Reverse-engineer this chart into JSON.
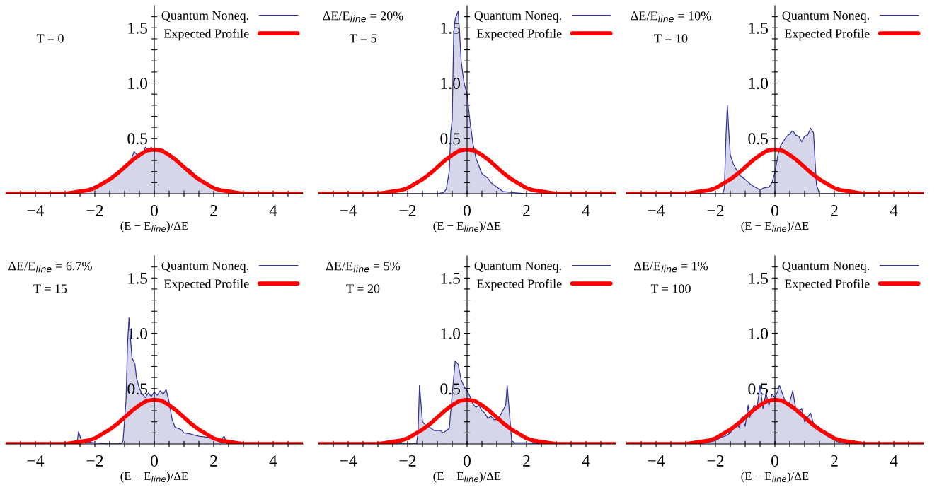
{
  "chart_data": [
    {
      "type": "line",
      "xlabel": "(E − E$_{line}$)/ΔE",
      "annotations": [
        "T = 0"
      ],
      "legend": "top right",
      "xlim": [
        -5,
        5
      ],
      "ylim": [
        0,
        1.7
      ],
      "xticks": [
        {
          "value": -4.5,
          "label": null
        },
        {
          "value": -4,
          "label": "−4"
        },
        {
          "value": -3.5,
          "label": null
        },
        {
          "value": -3,
          "label": null
        },
        {
          "value": -2.5,
          "label": null
        },
        {
          "value": -2,
          "label": "−2"
        },
        {
          "value": -1.5,
          "label": null
        },
        {
          "value": -1,
          "label": null
        },
        {
          "value": -0.5,
          "label": null
        },
        {
          "value": 0,
          "label": "0"
        },
        {
          "value": 0.5,
          "label": null
        },
        {
          "value": 1,
          "label": null
        },
        {
          "value": 1.5,
          "label": null
        },
        {
          "value": 2,
          "label": "2"
        },
        {
          "value": 2.5,
          "label": null
        },
        {
          "value": 3,
          "label": null
        },
        {
          "value": 3.5,
          "label": null
        },
        {
          "value": 4,
          "label": "4"
        },
        {
          "value": 4.5,
          "label": null
        }
      ],
      "yticks": [
        {
          "value": 0.1,
          "label": null
        },
        {
          "value": 0.2,
          "label": null
        },
        {
          "value": 0.3,
          "label": null
        },
        {
          "value": 0.4,
          "label": null
        },
        {
          "value": 0.5,
          "label": "0.5"
        },
        {
          "value": 0.6,
          "label": null
        },
        {
          "value": 0.7,
          "label": null
        },
        {
          "value": 0.8,
          "label": null
        },
        {
          "value": 0.9,
          "label": null
        },
        {
          "value": 1.0,
          "label": "1.0"
        },
        {
          "value": 1.1,
          "label": null
        },
        {
          "value": 1.2,
          "label": null
        },
        {
          "value": 1.3,
          "label": null
        },
        {
          "value": 1.4,
          "label": null
        },
        {
          "value": 1.5,
          "label": "1.5"
        },
        {
          "value": 1.6,
          "label": null
        }
      ],
      "series": [
        {
          "name": "Quantum Noneq.",
          "type": "area",
          "color": "#33339a",
          "x": [
            -5,
            -3,
            -2.5,
            -2,
            -1.5,
            -1.2,
            -1,
            -0.8,
            -0.68,
            -0.5,
            -0.4,
            -0.3,
            -0.2,
            -0.1,
            0,
            0.1,
            0.2,
            0.3,
            0.5,
            0.6,
            0.8,
            1,
            1.2,
            1.5,
            2,
            2.5,
            3,
            5
          ],
          "values": [
            0,
            0,
            0.01,
            0.07,
            0.13,
            0.2,
            0.24,
            0.29,
            0.38,
            0.33,
            0.36,
            0.42,
            0.39,
            0.42,
            0.38,
            0.41,
            0.39,
            0.4,
            0.35,
            0.31,
            0.3,
            0.24,
            0.22,
            0.13,
            0.05,
            0.01,
            0,
            0
          ]
        },
        {
          "name": "Expected Profile",
          "color": "#ff0000",
          "x": [
            -5,
            -4,
            -3.5,
            -3,
            -2.75,
            -2.5,
            -2.25,
            -2,
            -1.75,
            -1.5,
            -1.25,
            -1,
            -0.75,
            -0.5,
            -0.25,
            0,
            0.25,
            0.5,
            0.75,
            1,
            1.25,
            1.5,
            1.75,
            2,
            2.25,
            2.5,
            2.75,
            3,
            3.5,
            4,
            5
          ],
          "values": [
            0,
            0,
            0,
            0,
            0.01,
            0.02,
            0.03,
            0.05,
            0.09,
            0.13,
            0.18,
            0.24,
            0.3,
            0.35,
            0.39,
            0.4,
            0.39,
            0.35,
            0.3,
            0.24,
            0.18,
            0.13,
            0.09,
            0.05,
            0.03,
            0.02,
            0.01,
            0,
            0,
            0,
            0
          ]
        }
      ]
    },
    {
      "type": "line",
      "xlabel": "(E − E$_{line}$)/ΔE",
      "annotations": [
        "ΔE/E$_{line}$ = 20%",
        "T = 5"
      ],
      "legend": "top right",
      "xlim": [
        -5,
        5
      ],
      "ylim": [
        0,
        1.7
      ],
      "xticks": [
        {
          "value": -4.5,
          "label": null
        },
        {
          "value": -4,
          "label": "−4"
        },
        {
          "value": -3.5,
          "label": null
        },
        {
          "value": -3,
          "label": null
        },
        {
          "value": -2.5,
          "label": null
        },
        {
          "value": -2,
          "label": "−2"
        },
        {
          "value": -1.5,
          "label": null
        },
        {
          "value": -1,
          "label": null
        },
        {
          "value": -0.5,
          "label": null
        },
        {
          "value": 0,
          "label": "0"
        },
        {
          "value": 0.5,
          "label": null
        },
        {
          "value": 1,
          "label": null
        },
        {
          "value": 1.5,
          "label": null
        },
        {
          "value": 2,
          "label": "2"
        },
        {
          "value": 2.5,
          "label": null
        },
        {
          "value": 3,
          "label": null
        },
        {
          "value": 3.5,
          "label": null
        },
        {
          "value": 4,
          "label": "4"
        },
        {
          "value": 4.5,
          "label": null
        }
      ],
      "yticks": [
        {
          "value": 0.1,
          "label": null
        },
        {
          "value": 0.2,
          "label": null
        },
        {
          "value": 0.3,
          "label": null
        },
        {
          "value": 0.4,
          "label": null
        },
        {
          "value": 0.5,
          "label": "0.5"
        },
        {
          "value": 0.6,
          "label": null
        },
        {
          "value": 0.7,
          "label": null
        },
        {
          "value": 0.8,
          "label": null
        },
        {
          "value": 0.9,
          "label": null
        },
        {
          "value": 1.0,
          "label": "1.0"
        },
        {
          "value": 1.1,
          "label": null
        },
        {
          "value": 1.2,
          "label": null
        },
        {
          "value": 1.3,
          "label": null
        },
        {
          "value": 1.4,
          "label": null
        },
        {
          "value": 1.5,
          "label": "1.5"
        },
        {
          "value": 1.6,
          "label": null
        }
      ],
      "series": [
        {
          "name": "Quantum Noneq.",
          "type": "area",
          "color": "#33339a",
          "x": [
            -5,
            -1,
            -0.8,
            -0.7,
            -0.6,
            -0.55,
            -0.5,
            -0.45,
            -0.4,
            -0.3,
            -0.25,
            -0.2,
            -0.1,
            0,
            0.1,
            0.15,
            0.2,
            0.3,
            0.5,
            0.7,
            0.8,
            0.9,
            1,
            1.2,
            1.5,
            2,
            5
          ],
          "values": [
            0,
            0,
            0.01,
            0.04,
            0.2,
            0.55,
            0.67,
            1.45,
            1.58,
            1.65,
            1.45,
            1.2,
            1.0,
            0.9,
            0.65,
            0.55,
            0.45,
            0.32,
            0.18,
            0.14,
            0.1,
            0.08,
            0.06,
            0.02,
            0.01,
            0,
            0
          ]
        },
        {
          "name": "Expected Profile",
          "color": "#ff0000",
          "x": [
            -5,
            -4,
            -3.5,
            -3,
            -2.75,
            -2.5,
            -2.25,
            -2,
            -1.75,
            -1.5,
            -1.25,
            -1,
            -0.75,
            -0.5,
            -0.25,
            0,
            0.25,
            0.5,
            0.75,
            1,
            1.25,
            1.5,
            1.75,
            2,
            2.25,
            2.5,
            2.75,
            3,
            3.5,
            4,
            5
          ],
          "values": [
            0,
            0,
            0,
            0,
            0.01,
            0.02,
            0.03,
            0.05,
            0.09,
            0.13,
            0.18,
            0.24,
            0.3,
            0.35,
            0.39,
            0.4,
            0.39,
            0.35,
            0.3,
            0.24,
            0.18,
            0.13,
            0.09,
            0.05,
            0.03,
            0.02,
            0.01,
            0,
            0,
            0,
            0
          ]
        }
      ]
    },
    {
      "type": "line",
      "xlabel": "(E − E$_{line}$)/ΔE",
      "annotations": [
        "ΔE/E$_{line}$ = 10%",
        "T = 10"
      ],
      "legend": "top right",
      "xlim": [
        -5,
        5
      ],
      "ylim": [
        0,
        1.7
      ],
      "xticks": [
        {
          "value": -4.5,
          "label": null
        },
        {
          "value": -4,
          "label": "−4"
        },
        {
          "value": -3.5,
          "label": null
        },
        {
          "value": -3,
          "label": null
        },
        {
          "value": -2.5,
          "label": null
        },
        {
          "value": -2,
          "label": "−2"
        },
        {
          "value": -1.5,
          "label": null
        },
        {
          "value": -1,
          "label": null
        },
        {
          "value": -0.5,
          "label": null
        },
        {
          "value": 0,
          "label": "0"
        },
        {
          "value": 0.5,
          "label": null
        },
        {
          "value": 1,
          "label": null
        },
        {
          "value": 1.5,
          "label": null
        },
        {
          "value": 2,
          "label": "2"
        },
        {
          "value": 2.5,
          "label": null
        },
        {
          "value": 3,
          "label": null
        },
        {
          "value": 3.5,
          "label": null
        },
        {
          "value": 4,
          "label": "4"
        },
        {
          "value": 4.5,
          "label": null
        }
      ],
      "yticks": [
        {
          "value": 0.1,
          "label": null
        },
        {
          "value": 0.2,
          "label": null
        },
        {
          "value": 0.3,
          "label": null
        },
        {
          "value": 0.4,
          "label": null
        },
        {
          "value": 0.5,
          "label": "0.5"
        },
        {
          "value": 0.6,
          "label": null
        },
        {
          "value": 0.7,
          "label": null
        },
        {
          "value": 0.8,
          "label": null
        },
        {
          "value": 0.9,
          "label": null
        },
        {
          "value": 1.0,
          "label": "1.0"
        },
        {
          "value": 1.1,
          "label": null
        },
        {
          "value": 1.2,
          "label": null
        },
        {
          "value": 1.3,
          "label": null
        },
        {
          "value": 1.4,
          "label": null
        },
        {
          "value": 1.5,
          "label": "1.5"
        },
        {
          "value": 1.6,
          "label": null
        }
      ],
      "series": [
        {
          "name": "Quantum Noneq.",
          "type": "area",
          "color": "#33339a",
          "x": [
            -5,
            -1.75,
            -1.7,
            -1.65,
            -1.6,
            -1.55,
            -1.5,
            -1.4,
            -1.2,
            -1,
            -0.8,
            -0.6,
            -0.5,
            -0.4,
            -0.2,
            -0.1,
            0,
            0.1,
            0.2,
            0.3,
            0.4,
            0.5,
            0.6,
            0.7,
            0.8,
            0.9,
            1,
            1.1,
            1.2,
            1.3,
            1.35,
            1.4,
            1.5,
            5
          ],
          "values": [
            0,
            0,
            0.05,
            0.5,
            0.8,
            0.56,
            0.35,
            0.27,
            0.17,
            0.13,
            0.08,
            0.05,
            0.03,
            0.05,
            0.06,
            0.1,
            0.19,
            0.35,
            0.44,
            0.48,
            0.52,
            0.54,
            0.57,
            0.53,
            0.52,
            0.47,
            0.52,
            0.53,
            0.59,
            0.55,
            0.3,
            0.08,
            0,
            0
          ]
        },
        {
          "name": "Expected Profile",
          "color": "#ff0000",
          "x": [
            -5,
            -4,
            -3.5,
            -3,
            -2.75,
            -2.5,
            -2.25,
            -2,
            -1.75,
            -1.5,
            -1.25,
            -1,
            -0.75,
            -0.5,
            -0.25,
            0,
            0.25,
            0.5,
            0.75,
            1,
            1.25,
            1.5,
            1.75,
            2,
            2.25,
            2.5,
            2.75,
            3,
            3.5,
            4,
            5
          ],
          "values": [
            0,
            0,
            0,
            0,
            0.01,
            0.02,
            0.03,
            0.05,
            0.09,
            0.13,
            0.18,
            0.24,
            0.3,
            0.35,
            0.39,
            0.4,
            0.39,
            0.35,
            0.3,
            0.24,
            0.18,
            0.13,
            0.09,
            0.05,
            0.03,
            0.02,
            0.01,
            0,
            0,
            0,
            0
          ]
        }
      ]
    },
    {
      "type": "line",
      "xlabel": "(E − E$_{line}$)/ΔE",
      "annotations": [
        "ΔE/E$_{line}$ = 6.7%",
        "T = 15"
      ],
      "legend": "top right",
      "xlim": [
        -5,
        5
      ],
      "ylim": [
        0,
        1.7
      ],
      "xticks": [
        {
          "value": -4.5,
          "label": null
        },
        {
          "value": -4,
          "label": "−4"
        },
        {
          "value": -3.5,
          "label": null
        },
        {
          "value": -3,
          "label": null
        },
        {
          "value": -2.5,
          "label": null
        },
        {
          "value": -2,
          "label": "−2"
        },
        {
          "value": -1.5,
          "label": null
        },
        {
          "value": -1,
          "label": null
        },
        {
          "value": -0.5,
          "label": null
        },
        {
          "value": 0,
          "label": "0"
        },
        {
          "value": 0.5,
          "label": null
        },
        {
          "value": 1,
          "label": null
        },
        {
          "value": 1.5,
          "label": null
        },
        {
          "value": 2,
          "label": "2"
        },
        {
          "value": 2.5,
          "label": null
        },
        {
          "value": 3,
          "label": null
        },
        {
          "value": 3.5,
          "label": null
        },
        {
          "value": 4,
          "label": "4"
        },
        {
          "value": 4.5,
          "label": null
        }
      ],
      "yticks": [
        {
          "value": 0.1,
          "label": null
        },
        {
          "value": 0.2,
          "label": null
        },
        {
          "value": 0.3,
          "label": null
        },
        {
          "value": 0.4,
          "label": null
        },
        {
          "value": 0.5,
          "label": "0.5"
        },
        {
          "value": 0.6,
          "label": null
        },
        {
          "value": 0.7,
          "label": null
        },
        {
          "value": 0.8,
          "label": null
        },
        {
          "value": 0.9,
          "label": null
        },
        {
          "value": 1.0,
          "label": "1.0"
        },
        {
          "value": 1.1,
          "label": null
        },
        {
          "value": 1.2,
          "label": null
        },
        {
          "value": 1.3,
          "label": null
        },
        {
          "value": 1.4,
          "label": null
        },
        {
          "value": 1.5,
          "label": "1.5"
        },
        {
          "value": 1.6,
          "label": null
        }
      ],
      "series": [
        {
          "name": "Quantum Noneq.",
          "type": "area",
          "color": "#33339a",
          "x": [
            -5,
            -2.6,
            -2.55,
            -2.45,
            -2.3,
            -2,
            -1.5,
            -1.1,
            -1.05,
            -0.95,
            -0.9,
            -0.85,
            -0.8,
            -0.75,
            -0.65,
            -0.6,
            -0.5,
            -0.4,
            -0.3,
            -0.2,
            -0.1,
            0,
            0.1,
            0.2,
            0.3,
            0.4,
            0.5,
            0.6,
            0.7,
            0.9,
            1,
            1.2,
            1.5,
            1.8,
            2,
            2.2,
            2.35,
            2.45,
            5
          ],
          "values": [
            0,
            0,
            0.11,
            0.03,
            0.02,
            0.01,
            0,
            0,
            0.03,
            0.4,
            0.9,
            1.14,
            0.95,
            0.78,
            0.72,
            0.6,
            0.5,
            0.45,
            0.42,
            0.46,
            0.43,
            0.47,
            0.44,
            0.48,
            0.45,
            0.49,
            0.38,
            0.22,
            0.15,
            0.13,
            0.1,
            0.09,
            0.07,
            0.06,
            0.04,
            0.02,
            0.07,
            0,
            0
          ]
        },
        {
          "name": "Expected Profile",
          "color": "#ff0000",
          "x": [
            -5,
            -4,
            -3.5,
            -3,
            -2.75,
            -2.5,
            -2.25,
            -2,
            -1.75,
            -1.5,
            -1.25,
            -1,
            -0.75,
            -0.5,
            -0.25,
            0,
            0.25,
            0.5,
            0.75,
            1,
            1.25,
            1.5,
            1.75,
            2,
            2.25,
            2.5,
            2.75,
            3,
            3.5,
            4,
            5
          ],
          "values": [
            0,
            0,
            0,
            0,
            0.01,
            0.02,
            0.03,
            0.05,
            0.09,
            0.13,
            0.18,
            0.24,
            0.3,
            0.35,
            0.39,
            0.4,
            0.39,
            0.35,
            0.3,
            0.24,
            0.18,
            0.13,
            0.09,
            0.05,
            0.03,
            0.02,
            0.01,
            0,
            0,
            0,
            0
          ]
        }
      ]
    },
    {
      "type": "line",
      "xlabel": "(E − E$_{line}$)/ΔE",
      "annotations": [
        "ΔE/E$_{line}$ = 5%",
        "T = 20"
      ],
      "legend": "top right",
      "xlim": [
        -5,
        5
      ],
      "ylim": [
        0,
        1.7
      ],
      "xticks": [
        {
          "value": -4.5,
          "label": null
        },
        {
          "value": -4,
          "label": "−4"
        },
        {
          "value": -3.5,
          "label": null
        },
        {
          "value": -3,
          "label": null
        },
        {
          "value": -2.5,
          "label": null
        },
        {
          "value": -2,
          "label": "−2"
        },
        {
          "value": -1.5,
          "label": null
        },
        {
          "value": -1,
          "label": null
        },
        {
          "value": -0.5,
          "label": null
        },
        {
          "value": 0,
          "label": "0"
        },
        {
          "value": 0.5,
          "label": null
        },
        {
          "value": 1,
          "label": null
        },
        {
          "value": 1.5,
          "label": null
        },
        {
          "value": 2,
          "label": "2"
        },
        {
          "value": 2.5,
          "label": null
        },
        {
          "value": 3,
          "label": null
        },
        {
          "value": 3.5,
          "label": null
        },
        {
          "value": 4,
          "label": "4"
        },
        {
          "value": 4.5,
          "label": null
        }
      ],
      "yticks": [
        {
          "value": 0.1,
          "label": null
        },
        {
          "value": 0.2,
          "label": null
        },
        {
          "value": 0.3,
          "label": null
        },
        {
          "value": 0.4,
          "label": null
        },
        {
          "value": 0.5,
          "label": "0.5"
        },
        {
          "value": 0.6,
          "label": null
        },
        {
          "value": 0.7,
          "label": null
        },
        {
          "value": 0.8,
          "label": null
        },
        {
          "value": 0.9,
          "label": null
        },
        {
          "value": 1.0,
          "label": "1.0"
        },
        {
          "value": 1.1,
          "label": null
        },
        {
          "value": 1.2,
          "label": null
        },
        {
          "value": 1.3,
          "label": null
        },
        {
          "value": 1.4,
          "label": null
        },
        {
          "value": 1.5,
          "label": "1.5"
        },
        {
          "value": 1.6,
          "label": null
        }
      ],
      "series": [
        {
          "name": "Quantum Noneq.",
          "type": "area",
          "color": "#33339a",
          "x": [
            -5,
            -1.7,
            -1.65,
            -1.6,
            -1.5,
            -1.4,
            -1.3,
            -1.1,
            -0.9,
            -0.8,
            -0.7,
            -0.6,
            -0.5,
            -0.4,
            -0.3,
            -0.2,
            -0.1,
            0,
            0.1,
            0.2,
            0.3,
            0.4,
            0.5,
            0.6,
            0.7,
            0.8,
            0.9,
            1,
            1.1,
            1.2,
            1.3,
            1.35,
            1.45,
            1.5,
            1.6,
            2,
            2.5,
            5
          ],
          "values": [
            0,
            0,
            0.1,
            0.53,
            0.2,
            0.17,
            0.16,
            0.12,
            0.12,
            0.1,
            0.12,
            0.14,
            0.45,
            0.75,
            0.72,
            0.58,
            0.52,
            0.48,
            0.43,
            0.36,
            0.33,
            0.35,
            0.3,
            0.28,
            0.23,
            0.25,
            0.22,
            0.22,
            0.25,
            0.3,
            0.35,
            0.53,
            0.2,
            0.03,
            0.01,
            0.01,
            0,
            0
          ]
        },
        {
          "name": "Expected Profile",
          "color": "#ff0000",
          "x": [
            -5,
            -4,
            -3.5,
            -3,
            -2.75,
            -2.5,
            -2.25,
            -2,
            -1.75,
            -1.5,
            -1.25,
            -1,
            -0.75,
            -0.5,
            -0.25,
            0,
            0.25,
            0.5,
            0.75,
            1,
            1.25,
            1.5,
            1.75,
            2,
            2.25,
            2.5,
            2.75,
            3,
            3.5,
            4,
            5
          ],
          "values": [
            0,
            0,
            0,
            0,
            0.01,
            0.02,
            0.03,
            0.05,
            0.09,
            0.13,
            0.18,
            0.24,
            0.3,
            0.35,
            0.39,
            0.4,
            0.39,
            0.35,
            0.3,
            0.24,
            0.18,
            0.13,
            0.09,
            0.05,
            0.03,
            0.02,
            0.01,
            0,
            0,
            0,
            0
          ]
        }
      ]
    },
    {
      "type": "line",
      "xlabel": "(E − E$_{line}$)/ΔE",
      "annotations": [
        "ΔE/E$_{line}$ = 1%",
        "T = 100"
      ],
      "legend": "top right",
      "xlim": [
        -5,
        5
      ],
      "ylim": [
        0,
        1.7
      ],
      "xticks": [
        {
          "value": -4.5,
          "label": null
        },
        {
          "value": -4,
          "label": "−4"
        },
        {
          "value": -3.5,
          "label": null
        },
        {
          "value": -3,
          "label": null
        },
        {
          "value": -2.5,
          "label": null
        },
        {
          "value": -2,
          "label": "−2"
        },
        {
          "value": -1.5,
          "label": null
        },
        {
          "value": -1,
          "label": null
        },
        {
          "value": -0.5,
          "label": null
        },
        {
          "value": 0,
          "label": "0"
        },
        {
          "value": 0.5,
          "label": null
        },
        {
          "value": 1,
          "label": null
        },
        {
          "value": 1.5,
          "label": null
        },
        {
          "value": 2,
          "label": "2"
        },
        {
          "value": 2.5,
          "label": null
        },
        {
          "value": 3,
          "label": null
        },
        {
          "value": 3.5,
          "label": null
        },
        {
          "value": 4,
          "label": "4"
        },
        {
          "value": 4.5,
          "label": null
        }
      ],
      "yticks": [
        {
          "value": 0.1,
          "label": null
        },
        {
          "value": 0.2,
          "label": null
        },
        {
          "value": 0.3,
          "label": null
        },
        {
          "value": 0.4,
          "label": null
        },
        {
          "value": 0.5,
          "label": "0.5"
        },
        {
          "value": 0.6,
          "label": null
        },
        {
          "value": 0.7,
          "label": null
        },
        {
          "value": 0.8,
          "label": null
        },
        {
          "value": 0.9,
          "label": null
        },
        {
          "value": 1.0,
          "label": "1.0"
        },
        {
          "value": 1.1,
          "label": null
        },
        {
          "value": 1.2,
          "label": null
        },
        {
          "value": 1.3,
          "label": null
        },
        {
          "value": 1.4,
          "label": null
        },
        {
          "value": 1.5,
          "label": "1.5"
        },
        {
          "value": 1.6,
          "label": null
        }
      ],
      "series": [
        {
          "name": "Quantum Noneq.",
          "type": "area",
          "color": "#33339a",
          "x": [
            -5,
            -2.5,
            -2,
            -1.8,
            -1.6,
            -1.5,
            -1.3,
            -1.2,
            -1.1,
            -1,
            -0.9,
            -0.85,
            -0.7,
            -0.6,
            -0.5,
            -0.4,
            -0.3,
            -0.2,
            -0.1,
            0,
            0.1,
            0.15,
            0.3,
            0.4,
            0.5,
            0.6,
            0.7,
            0.8,
            0.9,
            1,
            1.2,
            1.3,
            1.5,
            1.7,
            1.9,
            2.1,
            2.5,
            5
          ],
          "values": [
            0,
            0,
            0.03,
            0.06,
            0.08,
            0.1,
            0.18,
            0.15,
            0.25,
            0.16,
            0.35,
            0.24,
            0.35,
            0.33,
            0.53,
            0.32,
            0.46,
            0.35,
            0.45,
            0.42,
            0.48,
            0.53,
            0.42,
            0.35,
            0.38,
            0.48,
            0.32,
            0.3,
            0.32,
            0.2,
            0.28,
            0.18,
            0.15,
            0.08,
            0.05,
            0.02,
            0,
            0
          ]
        },
        {
          "name": "Expected Profile",
          "color": "#ff0000",
          "x": [
            -5,
            -4,
            -3.5,
            -3,
            -2.75,
            -2.5,
            -2.25,
            -2,
            -1.75,
            -1.5,
            -1.25,
            -1,
            -0.75,
            -0.5,
            -0.25,
            0,
            0.25,
            0.5,
            0.75,
            1,
            1.25,
            1.5,
            1.75,
            2,
            2.25,
            2.5,
            2.75,
            3,
            3.5,
            4,
            5
          ],
          "values": [
            0,
            0,
            0,
            0,
            0.01,
            0.02,
            0.03,
            0.05,
            0.09,
            0.13,
            0.18,
            0.24,
            0.3,
            0.35,
            0.39,
            0.4,
            0.39,
            0.35,
            0.3,
            0.24,
            0.18,
            0.13,
            0.09,
            0.05,
            0.03,
            0.02,
            0.01,
            0,
            0,
            0,
            0
          ]
        }
      ]
    }
  ]
}
